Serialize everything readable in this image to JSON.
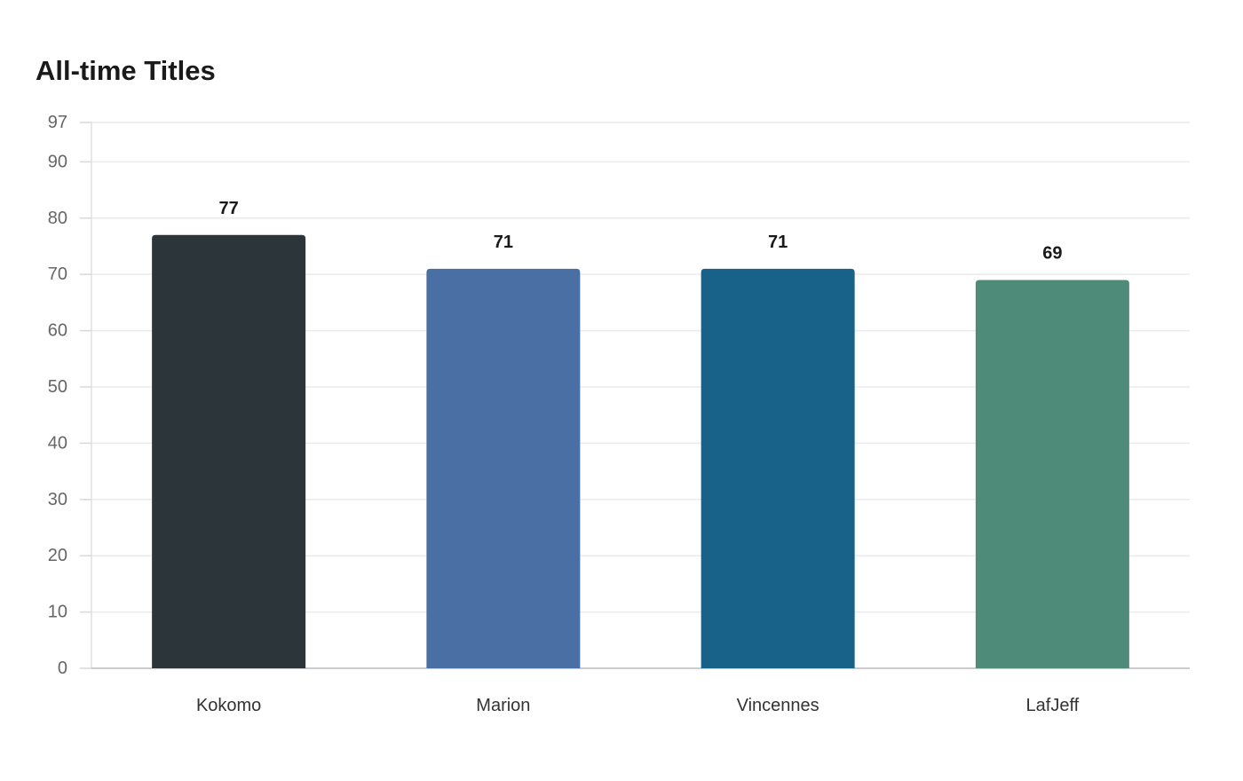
{
  "chart_data": {
    "type": "bar",
    "title": "All-time Titles",
    "xlabel": "",
    "ylabel": "",
    "categories": [
      "Kokomo",
      "Marion",
      "Vincennes",
      "LafJeff"
    ],
    "values": [
      77,
      71,
      71,
      69
    ],
    "colors": [
      "#2c3539",
      "#4a6fa5",
      "#186289",
      "#4e8c79"
    ],
    "ylim": [
      0,
      97
    ],
    "yticks": [
      0,
      10,
      20,
      30,
      40,
      50,
      60,
      70,
      80,
      90,
      97
    ],
    "grid": true,
    "legend": "none",
    "data_labels": true
  }
}
